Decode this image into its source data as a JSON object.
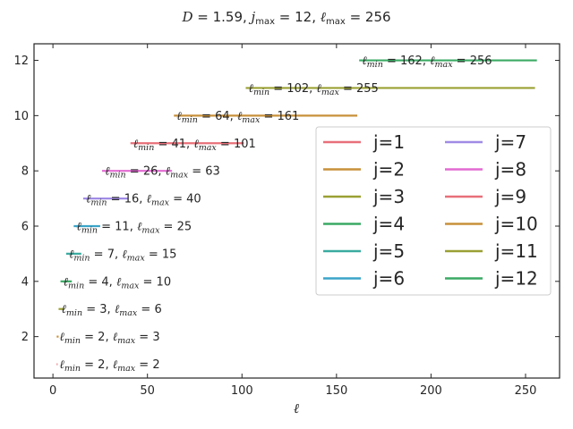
{
  "chart_data": {
    "type": "line",
    "title": "D = 1.59,  j_max = 12,  ℓ_max = 256",
    "title_parts": {
      "d_value": "1.59",
      "jmax_value": "12",
      "lmax_value": "256"
    },
    "xlabel": "ℓ",
    "ylabel": "",
    "xlim": [
      -10,
      268
    ],
    "ylim": [
      0.5,
      12.6
    ],
    "x_ticks": [
      0,
      50,
      100,
      150,
      200,
      250
    ],
    "y_ticks": [
      2,
      4,
      6,
      8,
      10,
      12
    ],
    "grid": false,
    "legend_position": "right",
    "legend_columns": 2,
    "series": [
      {
        "name": "j=1",
        "j": 1,
        "l_min": 2,
        "l_max": 2,
        "color": "#e8707a"
      },
      {
        "name": "j=2",
        "j": 2,
        "l_min": 2,
        "l_max": 3,
        "color": "#c8903a"
      },
      {
        "name": "j=3",
        "j": 3,
        "l_min": 3,
        "l_max": 6,
        "color": "#9aa033"
      },
      {
        "name": "j=4",
        "j": 4,
        "l_min": 4,
        "l_max": 10,
        "color": "#3aaa64"
      },
      {
        "name": "j=5",
        "j": 5,
        "l_min": 7,
        "l_max": 15,
        "color": "#3aaba0"
      },
      {
        "name": "j=6",
        "j": 6,
        "l_min": 11,
        "l_max": 25,
        "color": "#3aa4c8"
      },
      {
        "name": "j=7",
        "j": 7,
        "l_min": 16,
        "l_max": 40,
        "color": "#a08ce6"
      },
      {
        "name": "j=8",
        "j": 8,
        "l_min": 26,
        "l_max": 63,
        "color": "#e26ad2"
      },
      {
        "name": "j=9",
        "j": 9,
        "l_min": 41,
        "l_max": 101,
        "color": "#e8707a"
      },
      {
        "name": "j=10",
        "j": 10,
        "l_min": 64,
        "l_max": 161,
        "color": "#c8903a"
      },
      {
        "name": "j=11",
        "j": 11,
        "l_min": 102,
        "l_max": 255,
        "color": "#9aa033"
      },
      {
        "name": "j=12",
        "j": 12,
        "l_min": 162,
        "l_max": 256,
        "color": "#3aaa64"
      }
    ]
  }
}
